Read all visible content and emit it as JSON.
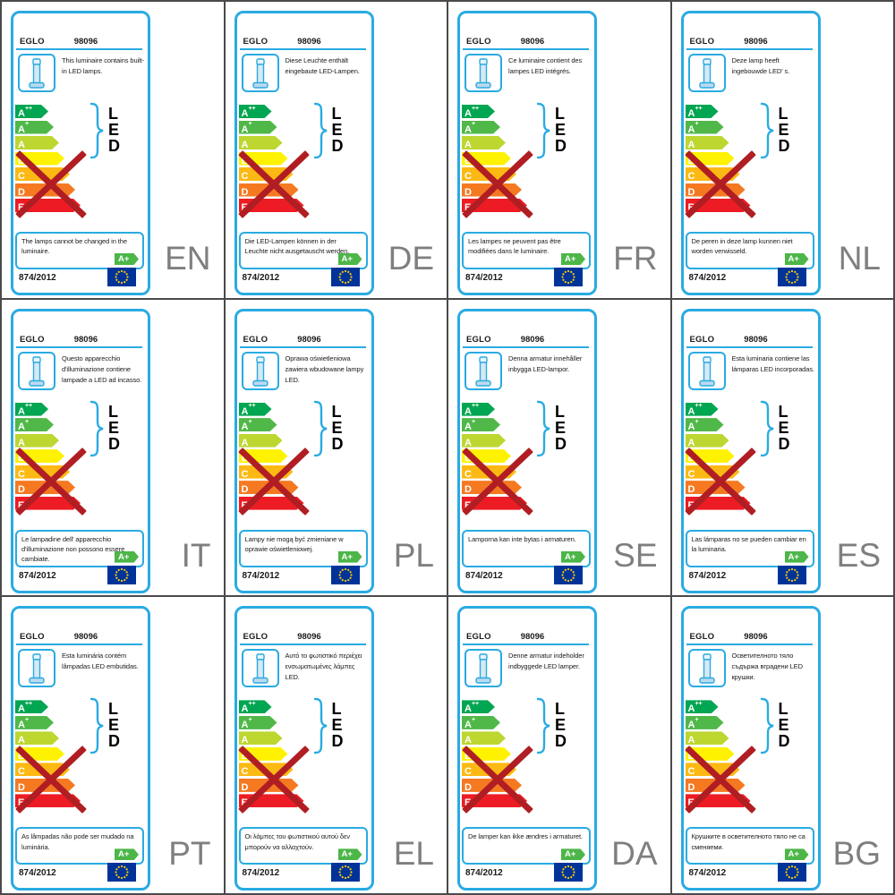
{
  "label": {
    "brand": "EGLO",
    "model": "98096",
    "regulation": "874/2012",
    "badge": "A+",
    "led": {
      "l1": "L",
      "l2": "E",
      "l3": "D"
    },
    "energy_scale": [
      {
        "letter": "A",
        "sup": "++",
        "color": "#00a651"
      },
      {
        "letter": "A",
        "sup": "+",
        "color": "#50b848"
      },
      {
        "letter": "A",
        "sup": "",
        "color": "#bed630"
      },
      {
        "letter": "B",
        "sup": "",
        "color": "#fff200"
      },
      {
        "letter": "C",
        "sup": "",
        "color": "#fdb913"
      },
      {
        "letter": "D",
        "sup": "",
        "color": "#f57921"
      },
      {
        "letter": "E",
        "sup": "",
        "color": "#ed1c24"
      }
    ],
    "colors": {
      "accent": "#29abe2",
      "cross": "#b01e23",
      "badge_green": "#4cb648",
      "eu_blue": "#003399",
      "star_yellow": "#ffcc00",
      "lang_gray": "#7f7f7f",
      "grid_line": "#4a4a4a"
    }
  },
  "cards": [
    {
      "lang": "EN",
      "top_text": "This luminaire contains built-in LED lamps.",
      "bottom_text": "The lamps cannot be changed in the luminaire."
    },
    {
      "lang": "DE",
      "top_text": "Diese Leuchte enthält eingebaute LED-Lampen.",
      "bottom_text": "Die LED-Lampen können in der Leuchte nicht ausgetauscht werden."
    },
    {
      "lang": "FR",
      "top_text": "Ce luminaire contient des lampes LED intégrés.",
      "bottom_text": "Les lampes ne peuvent pas être modifiées dans le luminaire."
    },
    {
      "lang": "NL",
      "top_text": "Deze lamp heeft ingebouwde LED' s.",
      "bottom_text": "De peren in deze lamp kunnen niet worden verwisseld."
    },
    {
      "lang": "IT",
      "top_text": "Questo apparecchio d'illuminazione contiene lampade a LED ad incasso.",
      "bottom_text": "Le lampadine dell' apparecchio d'illuminazione non possono essere cambiate."
    },
    {
      "lang": "PL",
      "top_text": "Oprawa oświetleniowa zawiera wbudowane lampy LED.",
      "bottom_text": "Lampy nie mogą być zmieniane w oprawie oświetleniowej."
    },
    {
      "lang": "SE",
      "top_text": "Denna armatur innehåller inbygga LED-lampor.",
      "bottom_text": "Lamporna kan inte bytas i armaturen."
    },
    {
      "lang": "ES",
      "top_text": "Esta luminaria contiene las lámparas LED incorporadas.",
      "bottom_text": "Las lámparas no se pueden cambiar en la luminaria."
    },
    {
      "lang": "PT",
      "top_text": "Esta luminária contém lâmpadas LED embutidas.",
      "bottom_text": "As lâmpadas não pode ser mudado na luminária."
    },
    {
      "lang": "EL",
      "top_text": "Αυτό το φωτιστικό περιέχει ενσωματωμένες λάμπες LED.",
      "bottom_text": "Οι λάμπες του φωτιστικού αυτού δεν μπορούν να αλλαχτούν."
    },
    {
      "lang": "DA",
      "top_text": "Denne armatur indeholder indbyggede LED lamper.",
      "bottom_text": "De lamper kan ikke ændres i armaturet."
    },
    {
      "lang": "BG",
      "top_text": "Осветителното тяло съдържа вградени LED крушки.",
      "bottom_text": "Крушките в осветителното тяло не са сменяеми."
    }
  ]
}
